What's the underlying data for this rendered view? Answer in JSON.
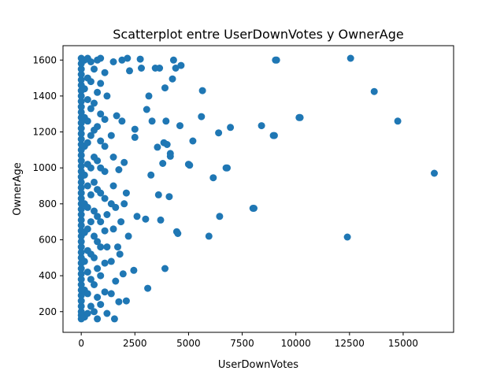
{
  "chart_data": {
    "type": "scatter",
    "title": "Scatterplot entre UserDownVotes y OwnerAge",
    "xlabel": "UserDownVotes",
    "ylabel": "OwnerAge",
    "xlim": [
      -850,
      17350
    ],
    "ylim": [
      85,
      1680
    ],
    "xticks": [
      0,
      2500,
      5000,
      7500,
      10000,
      12500,
      15000
    ],
    "yticks": [
      200,
      400,
      600,
      800,
      1000,
      1200,
      1400,
      1600
    ],
    "grid": false,
    "marker_color": "#1f77b4",
    "points": [
      {
        "x": 0,
        "y": 160
      },
      {
        "x": 0,
        "y": 180
      },
      {
        "x": 0,
        "y": 200
      },
      {
        "x": 0,
        "y": 230
      },
      {
        "x": 0,
        "y": 260
      },
      {
        "x": 0,
        "y": 290
      },
      {
        "x": 0,
        "y": 320
      },
      {
        "x": 0,
        "y": 350
      },
      {
        "x": 0,
        "y": 380
      },
      {
        "x": 0,
        "y": 410
      },
      {
        "x": 0,
        "y": 440
      },
      {
        "x": 0,
        "y": 470
      },
      {
        "x": 0,
        "y": 500
      },
      {
        "x": 0,
        "y": 530
      },
      {
        "x": 0,
        "y": 560
      },
      {
        "x": 0,
        "y": 590
      },
      {
        "x": 0,
        "y": 620
      },
      {
        "x": 0,
        "y": 650
      },
      {
        "x": 0,
        "y": 680
      },
      {
        "x": 0,
        "y": 710
      },
      {
        "x": 0,
        "y": 740
      },
      {
        "x": 0,
        "y": 770
      },
      {
        "x": 0,
        "y": 800
      },
      {
        "x": 0,
        "y": 830
      },
      {
        "x": 0,
        "y": 860
      },
      {
        "x": 0,
        "y": 890
      },
      {
        "x": 0,
        "y": 920
      },
      {
        "x": 0,
        "y": 950
      },
      {
        "x": 0,
        "y": 980
      },
      {
        "x": 0,
        "y": 1010
      },
      {
        "x": 0,
        "y": 1040
      },
      {
        "x": 0,
        "y": 1070
      },
      {
        "x": 0,
        "y": 1100
      },
      {
        "x": 0,
        "y": 1130
      },
      {
        "x": 0,
        "y": 1160
      },
      {
        "x": 0,
        "y": 1190
      },
      {
        "x": 0,
        "y": 1220
      },
      {
        "x": 0,
        "y": 1250
      },
      {
        "x": 0,
        "y": 1280
      },
      {
        "x": 0,
        "y": 1310
      },
      {
        "x": 0,
        "y": 1340
      },
      {
        "x": 0,
        "y": 1370
      },
      {
        "x": 0,
        "y": 1400
      },
      {
        "x": 0,
        "y": 1430
      },
      {
        "x": 0,
        "y": 1460
      },
      {
        "x": 0,
        "y": 1490
      },
      {
        "x": 0,
        "y": 1520
      },
      {
        "x": 0,
        "y": 1550
      },
      {
        "x": 0,
        "y": 1580
      },
      {
        "x": 0,
        "y": 1610
      },
      {
        "x": 150,
        "y": 170
      },
      {
        "x": 150,
        "y": 320
      },
      {
        "x": 150,
        "y": 480
      },
      {
        "x": 150,
        "y": 640
      },
      {
        "x": 150,
        "y": 800
      },
      {
        "x": 150,
        "y": 960
      },
      {
        "x": 150,
        "y": 1120
      },
      {
        "x": 150,
        "y": 1280
      },
      {
        "x": 150,
        "y": 1440
      },
      {
        "x": 150,
        "y": 1600
      },
      {
        "x": 300,
        "y": 190
      },
      {
        "x": 300,
        "y": 300
      },
      {
        "x": 300,
        "y": 420
      },
      {
        "x": 300,
        "y": 540
      },
      {
        "x": 300,
        "y": 660
      },
      {
        "x": 300,
        "y": 780
      },
      {
        "x": 300,
        "y": 900
      },
      {
        "x": 300,
        "y": 1020
      },
      {
        "x": 300,
        "y": 1140
      },
      {
        "x": 300,
        "y": 1260
      },
      {
        "x": 300,
        "y": 1380
      },
      {
        "x": 300,
        "y": 1500
      },
      {
        "x": 300,
        "y": 1610
      },
      {
        "x": 450,
        "y": 230
      },
      {
        "x": 450,
        "y": 380
      },
      {
        "x": 450,
        "y": 520
      },
      {
        "x": 450,
        "y": 700
      },
      {
        "x": 450,
        "y": 850
      },
      {
        "x": 450,
        "y": 1000
      },
      {
        "x": 450,
        "y": 1180
      },
      {
        "x": 450,
        "y": 1330
      },
      {
        "x": 450,
        "y": 1480
      },
      {
        "x": 450,
        "y": 1590
      },
      {
        "x": 600,
        "y": 200
      },
      {
        "x": 600,
        "y": 350
      },
      {
        "x": 600,
        "y": 500
      },
      {
        "x": 600,
        "y": 620
      },
      {
        "x": 600,
        "y": 760
      },
      {
        "x": 600,
        "y": 920
      },
      {
        "x": 600,
        "y": 1060
      },
      {
        "x": 600,
        "y": 1210
      },
      {
        "x": 600,
        "y": 1360
      },
      {
        "x": 600,
        "y": 1550
      },
      {
        "x": 750,
        "y": 160
      },
      {
        "x": 750,
        "y": 280
      },
      {
        "x": 750,
        "y": 440
      },
      {
        "x": 750,
        "y": 590
      },
      {
        "x": 750,
        "y": 730
      },
      {
        "x": 750,
        "y": 880
      },
      {
        "x": 750,
        "y": 1040
      },
      {
        "x": 750,
        "y": 1230
      },
      {
        "x": 750,
        "y": 1420
      },
      {
        "x": 750,
        "y": 1600
      },
      {
        "x": 900,
        "y": 240
      },
      {
        "x": 900,
        "y": 400
      },
      {
        "x": 900,
        "y": 560
      },
      {
        "x": 900,
        "y": 700
      },
      {
        "x": 900,
        "y": 860
      },
      {
        "x": 900,
        "y": 1000
      },
      {
        "x": 900,
        "y": 1150
      },
      {
        "x": 900,
        "y": 1300
      },
      {
        "x": 900,
        "y": 1470
      },
      {
        "x": 900,
        "y": 1610
      },
      {
        "x": 1100,
        "y": 310
      },
      {
        "x": 1100,
        "y": 470
      },
      {
        "x": 1100,
        "y": 650
      },
      {
        "x": 1100,
        "y": 830
      },
      {
        "x": 1100,
        "y": 980
      },
      {
        "x": 1100,
        "y": 1120
      },
      {
        "x": 1100,
        "y": 1270
      },
      {
        "x": 1100,
        "y": 1530
      },
      {
        "x": 1200,
        "y": 190
      },
      {
        "x": 1200,
        "y": 560
      },
      {
        "x": 1200,
        "y": 740
      },
      {
        "x": 1200,
        "y": 1400
      },
      {
        "x": 1400,
        "y": 300
      },
      {
        "x": 1400,
        "y": 480
      },
      {
        "x": 1400,
        "y": 800
      },
      {
        "x": 1400,
        "y": 1180
      },
      {
        "x": 1500,
        "y": 660
      },
      {
        "x": 1500,
        "y": 900
      },
      {
        "x": 1500,
        "y": 1060
      },
      {
        "x": 1500,
        "y": 1590
      },
      {
        "x": 1550,
        "y": 160
      },
      {
        "x": 1600,
        "y": 370
      },
      {
        "x": 1600,
        "y": 780
      },
      {
        "x": 1650,
        "y": 1290
      },
      {
        "x": 1700,
        "y": 560
      },
      {
        "x": 1750,
        "y": 255
      },
      {
        "x": 1750,
        "y": 990
      },
      {
        "x": 1800,
        "y": 520
      },
      {
        "x": 1850,
        "y": 700
      },
      {
        "x": 1900,
        "y": 1260
      },
      {
        "x": 1900,
        "y": 1600
      },
      {
        "x": 1950,
        "y": 410
      },
      {
        "x": 2000,
        "y": 800
      },
      {
        "x": 2000,
        "y": 1030
      },
      {
        "x": 2100,
        "y": 260
      },
      {
        "x": 2100,
        "y": 860
      },
      {
        "x": 2150,
        "y": 1610
      },
      {
        "x": 2200,
        "y": 620
      },
      {
        "x": 2250,
        "y": 1540
      },
      {
        "x": 2450,
        "y": 430
      },
      {
        "x": 2500,
        "y": 1215
      },
      {
        "x": 2500,
        "y": 1170
      },
      {
        "x": 2600,
        "y": 730
      },
      {
        "x": 2750,
        "y": 1605
      },
      {
        "x": 2800,
        "y": 1555
      },
      {
        "x": 3000,
        "y": 715
      },
      {
        "x": 3050,
        "y": 1325
      },
      {
        "x": 3100,
        "y": 330
      },
      {
        "x": 3150,
        "y": 1400
      },
      {
        "x": 3250,
        "y": 960
      },
      {
        "x": 3300,
        "y": 1260
      },
      {
        "x": 3450,
        "y": 1555
      },
      {
        "x": 3550,
        "y": 1115
      },
      {
        "x": 3600,
        "y": 850
      },
      {
        "x": 3650,
        "y": 1555
      },
      {
        "x": 3700,
        "y": 710
      },
      {
        "x": 3800,
        "y": 1025
      },
      {
        "x": 3850,
        "y": 1140
      },
      {
        "x": 3900,
        "y": 1445
      },
      {
        "x": 3900,
        "y": 440
      },
      {
        "x": 3950,
        "y": 1260
      },
      {
        "x": 4000,
        "y": 1130
      },
      {
        "x": 4100,
        "y": 840
      },
      {
        "x": 4150,
        "y": 1080
      },
      {
        "x": 4150,
        "y": 1065
      },
      {
        "x": 4250,
        "y": 1495
      },
      {
        "x": 4300,
        "y": 1600
      },
      {
        "x": 4400,
        "y": 1555
      },
      {
        "x": 4450,
        "y": 645
      },
      {
        "x": 4500,
        "y": 635
      },
      {
        "x": 4600,
        "y": 1235
      },
      {
        "x": 4650,
        "y": 1570
      },
      {
        "x": 5000,
        "y": 1020
      },
      {
        "x": 5050,
        "y": 1015
      },
      {
        "x": 5200,
        "y": 1150
      },
      {
        "x": 5600,
        "y": 1285
      },
      {
        "x": 5650,
        "y": 1430
      },
      {
        "x": 5950,
        "y": 620
      },
      {
        "x": 6150,
        "y": 945
      },
      {
        "x": 6400,
        "y": 1195
      },
      {
        "x": 6450,
        "y": 730
      },
      {
        "x": 6750,
        "y": 1000
      },
      {
        "x": 6800,
        "y": 1000
      },
      {
        "x": 6950,
        "y": 1225
      },
      {
        "x": 8000,
        "y": 775
      },
      {
        "x": 8050,
        "y": 775
      },
      {
        "x": 8400,
        "y": 1235
      },
      {
        "x": 8950,
        "y": 1180
      },
      {
        "x": 9000,
        "y": 1180
      },
      {
        "x": 9050,
        "y": 1600
      },
      {
        "x": 9100,
        "y": 1600
      },
      {
        "x": 10150,
        "y": 1280
      },
      {
        "x": 10200,
        "y": 1280
      },
      {
        "x": 12400,
        "y": 615
      },
      {
        "x": 12550,
        "y": 1610
      },
      {
        "x": 13650,
        "y": 1425
      },
      {
        "x": 14750,
        "y": 1260
      },
      {
        "x": 16450,
        "y": 970
      }
    ]
  }
}
